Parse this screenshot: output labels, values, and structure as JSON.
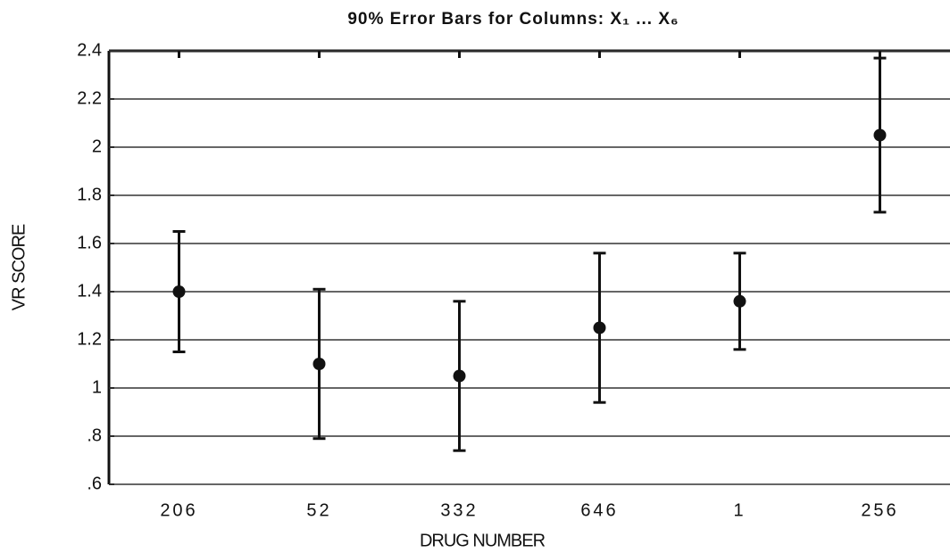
{
  "chart_data": {
    "type": "errorbar",
    "title": "90% Error Bars for Columns: X₁ ... X₆",
    "xlabel": "DRUG NUMBER",
    "ylabel": "VR SCORE",
    "categories": [
      "206",
      "52",
      "332",
      "646",
      "1",
      "256"
    ],
    "series": [
      {
        "color": "#111111",
        "values": [
          1.4,
          1.1,
          1.05,
          1.25,
          1.36,
          2.05
        ],
        "errors": [
          0.25,
          0.31,
          0.31,
          0.31,
          0.2,
          0.32
        ]
      }
    ],
    "ylim": [
      0.6,
      2.4
    ],
    "yticks": [
      {
        "value": 0.6,
        "label": ".6"
      },
      {
        "value": 0.8,
        "label": ".8"
      },
      1,
      1.2,
      1.4,
      1.6,
      1.8,
      2,
      2.2,
      2.4
    ],
    "grid": true
  }
}
